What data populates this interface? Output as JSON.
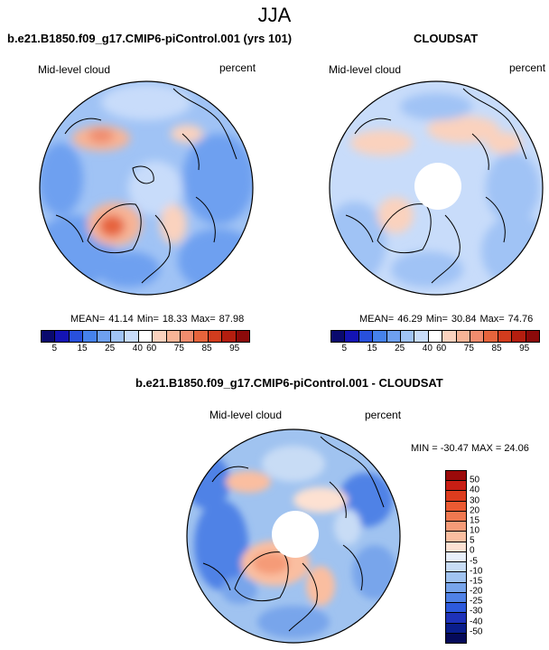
{
  "figure": {
    "title": "JJA",
    "bottom_title": "b.e21.B1850.f09_g17.CMIP6-piControl.001 - CLOUDSAT"
  },
  "panels": [
    {
      "id": "model",
      "title": "b.e21.B1850.f09_g17.CMIP6-piControl.001 (yrs 101)",
      "variable": "Mid-level cloud",
      "units": "percent",
      "mean_label": "MEAN=",
      "mean": "41.14",
      "min_label": "Min=",
      "min": "18.33",
      "max_label": "Max=",
      "max": "87.98",
      "has_missing_pole": false
    },
    {
      "id": "obs",
      "title": "CLOUDSAT",
      "variable": "Mid-level cloud",
      "units": "percent",
      "mean_label": "MEAN=",
      "mean": "46.29",
      "min_label": "Min=",
      "min": "30.84",
      "max_label": "Max=",
      "max": "74.76",
      "has_missing_pole": true
    },
    {
      "id": "diff",
      "variable": "Mid-level cloud",
      "units": "percent",
      "minmax_text": "MIN = -30.47 MAX = 24.06",
      "has_missing_pole": true
    }
  ],
  "abs_colorbar": {
    "colors": [
      "#0a0a6e",
      "#1414b4",
      "#2850dc",
      "#4682eb",
      "#6ea0f0",
      "#a0c3f5",
      "#c8dcfa",
      "#ffffff",
      "#fad2be",
      "#f7b496",
      "#f08c6e",
      "#e6643c",
      "#d23c1e",
      "#b41e0f",
      "#8c0a0a"
    ],
    "ticks": [
      "5",
      "15",
      "25",
      "40",
      "60",
      "75",
      "85",
      "95"
    ],
    "tick_positions": [
      0.0667,
      0.2,
      0.3333,
      0.4667,
      0.5333,
      0.6667,
      0.8,
      0.9333
    ]
  },
  "diff_colorbar": {
    "colors": [
      "#9b0a0a",
      "#c81e14",
      "#dc3c1e",
      "#eb5a32",
      "#f07850",
      "#f59b78",
      "#fabea0",
      "#fde1d2",
      "#e8f0fb",
      "#c8dcf5",
      "#a0c3f0",
      "#78a5eb",
      "#5082e6",
      "#2d5adc",
      "#1e32b9",
      "#0a1e8c",
      "#050a5a"
    ],
    "ticks": [
      "50",
      "40",
      "30",
      "20",
      "15",
      "10",
      "5",
      "0",
      "-5",
      "-10",
      "-15",
      "-20",
      "-25",
      "-30",
      "-40",
      "-50"
    ]
  }
}
